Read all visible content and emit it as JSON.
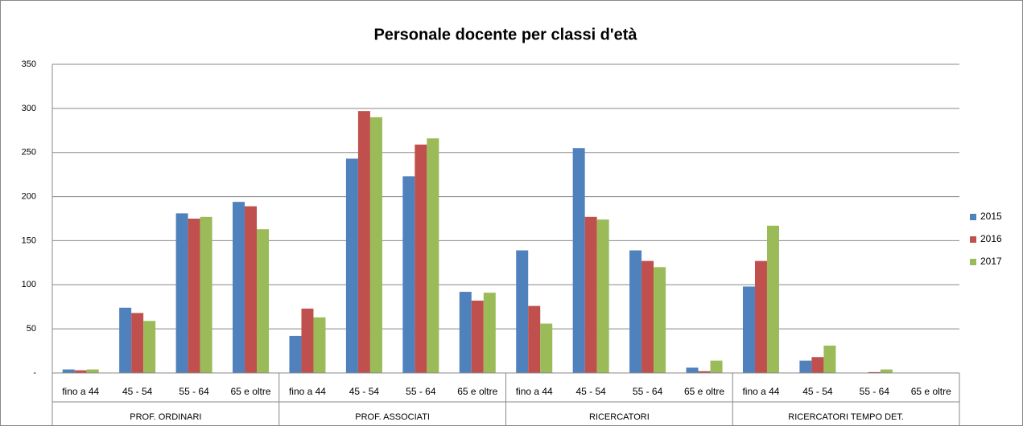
{
  "chart_data": {
    "type": "bar",
    "title": "Personale docente per classi d'età",
    "categories": [
      "fino a 44",
      "45 - 54",
      "55 - 64",
      "65 e oltre",
      "fino a 44",
      "45 - 54",
      "55 - 64",
      "65 e oltre",
      "fino a 44",
      "45 - 54",
      "55 - 64",
      "65 e oltre",
      "fino a 44",
      "45 - 54",
      "55 - 64",
      "65 e oltre"
    ],
    "groups": [
      "PROF. ORDINARI",
      "PROF. ASSOCIATI",
      "RICERCATORI",
      "RICERCATORI TEMPO DET."
    ],
    "series": [
      {
        "name": "2015",
        "color": "#4f81bd",
        "values": [
          4,
          74,
          181,
          194,
          42,
          243,
          223,
          92,
          139,
          255,
          139,
          6,
          98,
          14,
          0,
          0
        ]
      },
      {
        "name": "2016",
        "color": "#c0504d",
        "values": [
          3,
          68,
          175,
          189,
          73,
          297,
          259,
          82,
          76,
          177,
          127,
          2,
          127,
          18,
          1,
          0
        ]
      },
      {
        "name": "2017",
        "color": "#9bbb59",
        "values": [
          4,
          59,
          177,
          163,
          63,
          290,
          266,
          91,
          56,
          174,
          120,
          14,
          167,
          31,
          4,
          0
        ]
      }
    ],
    "ylim": [
      0,
      350
    ],
    "yticks": [
      {
        "value": 0,
        "label": "-"
      },
      50,
      100,
      150,
      200,
      250,
      300,
      350
    ],
    "grid": true,
    "legend": "right"
  }
}
